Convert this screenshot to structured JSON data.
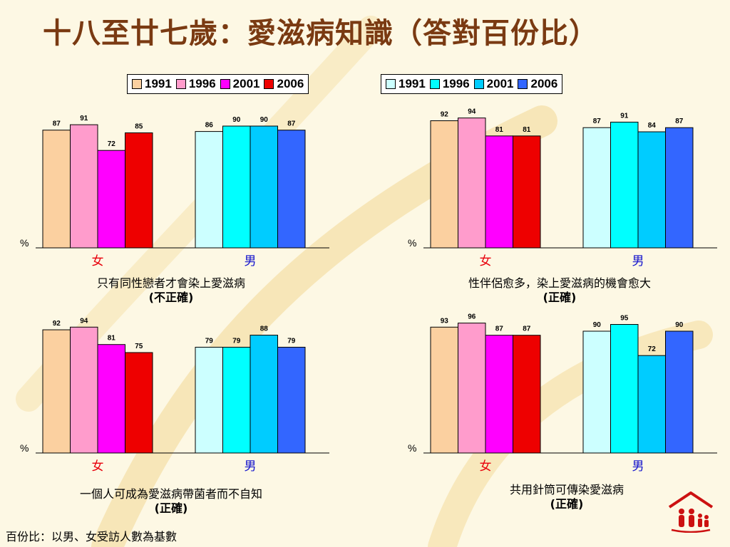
{
  "title": "十八至廿七歲：愛滋病知識（答對百份比）",
  "legend_female": [
    {
      "label": "1991",
      "color": "#fbd0a0"
    },
    {
      "label": "1996",
      "color": "#ff9ccc"
    },
    {
      "label": "2001",
      "color": "#ff00ff"
    },
    {
      "label": "2006",
      "color": "#ee0000"
    }
  ],
  "legend_male": [
    {
      "label": "1991",
      "color": "#ccffff"
    },
    {
      "label": "1996",
      "color": "#00ffff"
    },
    {
      "label": "2001",
      "color": "#00ccff"
    },
    {
      "label": "2006",
      "color": "#3366ff"
    }
  ],
  "colors": {
    "female": [
      "#fbd0a0",
      "#ff9ccc",
      "#ff00ff",
      "#ee0000"
    ],
    "male": [
      "#ccffff",
      "#00ffff",
      "#00ccff",
      "#3366ff"
    ],
    "female_label": "#e8000b",
    "male_label": "#1111cc",
    "title": "#7a3a12"
  },
  "footnote": "百份比：以男、女受訪人數為基數",
  "charts": [
    {
      "caption": "只有同性戀者才會染上愛滋病",
      "sub": "(不正確)"
    },
    {
      "caption": "性伴侶愈多，染上愛滋病的機會愈大",
      "sub": "(正確)"
    },
    {
      "caption": "一個人可成為愛滋病帶菌者而不自知",
      "sub": "(正確)"
    },
    {
      "caption": "共用針筒可傳染愛滋病",
      "sub": "(正確)"
    }
  ],
  "chart_data": [
    {
      "type": "bar",
      "ylabel": "%",
      "categories": [
        "女",
        "男"
      ],
      "series_names": [
        "1991",
        "1996",
        "2001",
        "2006"
      ],
      "values": {
        "女": [
          87,
          91,
          72,
          85
        ],
        "男": [
          86,
          90,
          90,
          87
        ]
      },
      "ylim": [
        0,
        100
      ]
    },
    {
      "type": "bar",
      "ylabel": "%",
      "categories": [
        "女",
        "男"
      ],
      "series_names": [
        "1991",
        "1996",
        "2001",
        "2006"
      ],
      "values": {
        "女": [
          92,
          94,
          81,
          81
        ],
        "男": [
          87,
          91,
          84,
          87
        ]
      },
      "ylim": [
        0,
        100
      ]
    },
    {
      "type": "bar",
      "ylabel": "%",
      "categories": [
        "女",
        "男"
      ],
      "series_names": [
        "1991",
        "1996",
        "2001",
        "2006"
      ],
      "values": {
        "女": [
          92,
          94,
          81,
          75
        ],
        "男": [
          79,
          79,
          88,
          79
        ]
      },
      "ylim": [
        0,
        100
      ]
    },
    {
      "type": "bar",
      "ylabel": "%",
      "categories": [
        "女",
        "男"
      ],
      "series_names": [
        "1991",
        "1996",
        "2001",
        "2006"
      ],
      "values": {
        "女": [
          93,
          96,
          87,
          87
        ],
        "男": [
          90,
          95,
          72,
          90
        ]
      },
      "ylim": [
        0,
        100
      ]
    }
  ]
}
